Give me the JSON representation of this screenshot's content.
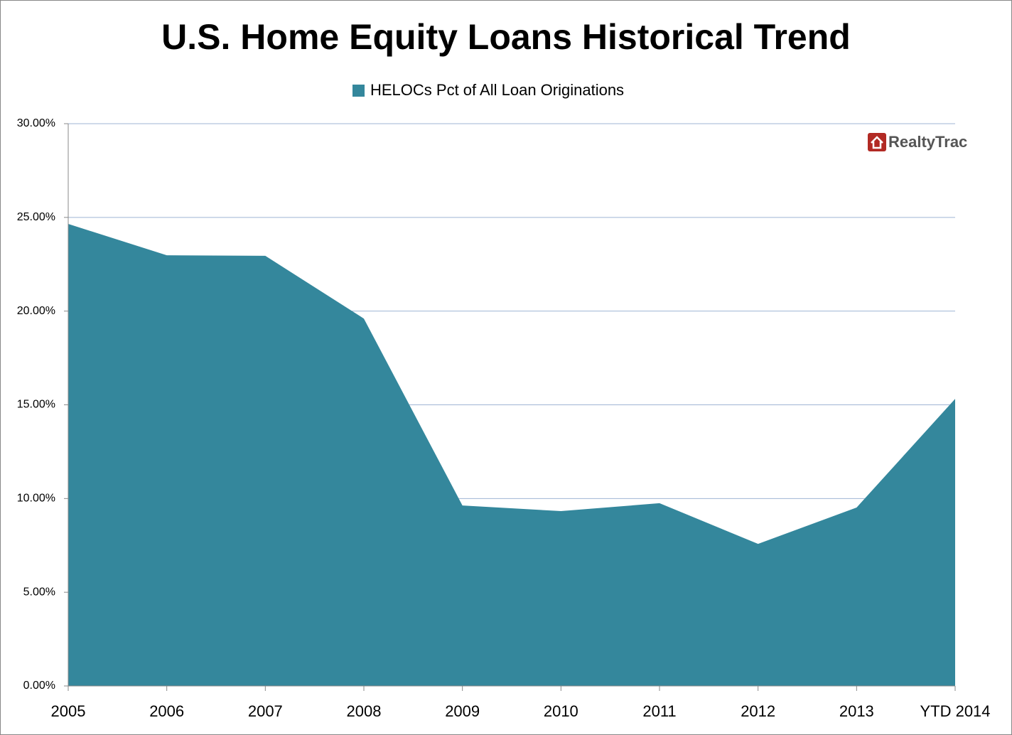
{
  "chart_data": {
    "type": "area",
    "title": "U.S. Home Equity Loans Historical Trend",
    "logo_text": "RealtyTrac",
    "categories": [
      "2005",
      "2006",
      "2007",
      "2008",
      "2009",
      "2010",
      "2011",
      "2012",
      "2013",
      "YTD 2014"
    ],
    "series": [
      {
        "name": "HELOCs Pct of All Loan Originations",
        "color": "#34879c",
        "values": [
          24.65,
          22.98,
          22.95,
          19.6,
          9.63,
          9.33,
          9.75,
          7.58,
          9.52,
          15.32
        ]
      }
    ],
    "ylim": [
      0,
      30
    ],
    "yticks": [
      {
        "value": 0,
        "label": "0.00%"
      },
      {
        "value": 5,
        "label": "5.00%"
      },
      {
        "value": 10,
        "label": "10.00%"
      },
      {
        "value": 15,
        "label": "15.00%"
      },
      {
        "value": 20,
        "label": "20.00%"
      },
      {
        "value": 25,
        "label": "25.00%"
      },
      {
        "value": 30,
        "label": "30.00%"
      }
    ],
    "grid": true,
    "legend": "top"
  }
}
